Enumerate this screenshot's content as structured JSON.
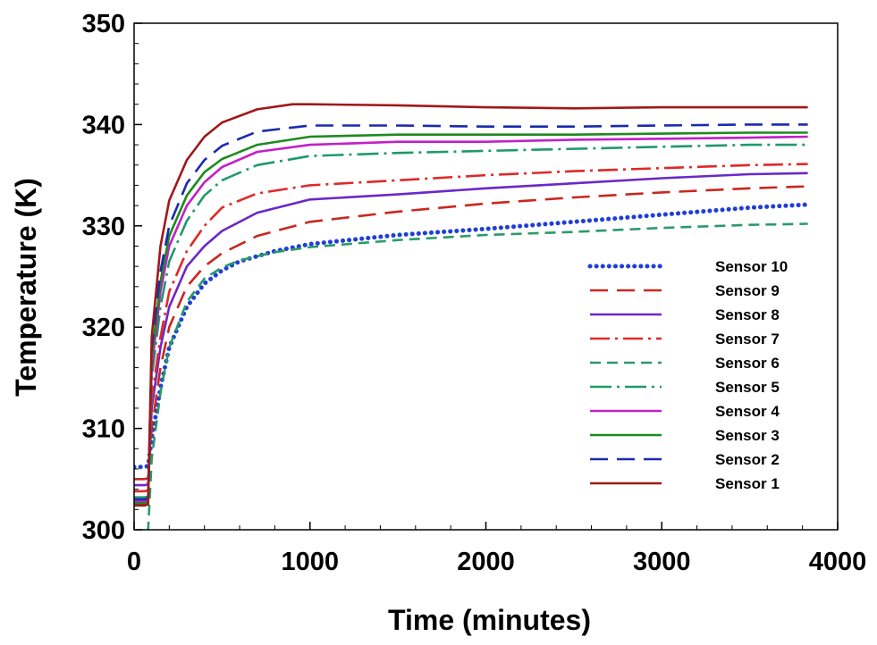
{
  "chart_data": {
    "type": "line",
    "xlabel": "Time (minutes)",
    "ylabel": "Temperature (K)",
    "xlim": [
      0,
      4000
    ],
    "ylim": [
      300,
      350
    ],
    "xticks": [
      0,
      1000,
      2000,
      3000,
      4000
    ],
    "yticks": [
      300,
      310,
      320,
      330,
      340,
      350
    ],
    "x_tick_labels": [
      "0",
      "1000",
      "2000",
      "3000",
      "4000"
    ],
    "y_tick_labels": [
      "300",
      "310",
      "320",
      "330",
      "340",
      "350"
    ],
    "grid": false,
    "legend_position": "right-center",
    "series": [
      {
        "name": "Sensor 10",
        "color": "#1f3fd6",
        "dash": "dotted",
        "x": [
          0,
          60,
          80,
          100,
          150,
          200,
          300,
          400,
          500,
          600,
          800,
          1000,
          1500,
          2000,
          2500,
          3000,
          3500,
          3830
        ],
        "y": [
          306.2,
          306.2,
          306.3,
          309.0,
          314.0,
          318.0,
          322.0,
          324.3,
          325.6,
          326.5,
          327.5,
          328.2,
          329.1,
          329.7,
          330.4,
          331.1,
          331.8,
          332.1
        ]
      },
      {
        "name": "Sensor 9",
        "color": "#c8281e",
        "dash": "long-dash",
        "x": [
          0,
          60,
          80,
          100,
          150,
          200,
          300,
          400,
          500,
          700,
          1000,
          1500,
          2000,
          2500,
          3000,
          3500,
          3830
        ],
        "y": [
          305.0,
          305.0,
          305.1,
          310.0,
          316.0,
          320.0,
          324.0,
          326.0,
          327.3,
          329.0,
          330.4,
          331.4,
          332.2,
          332.8,
          333.3,
          333.7,
          333.9
        ]
      },
      {
        "name": "Sensor 8",
        "color": "#6a28c8",
        "dash": "solid",
        "x": [
          0,
          60,
          80,
          100,
          150,
          200,
          300,
          400,
          500,
          700,
          1000,
          1500,
          2000,
          2500,
          3000,
          3500,
          3830
        ],
        "y": [
          304.4,
          304.4,
          304.5,
          312.0,
          318.0,
          322.0,
          326.0,
          328.0,
          329.5,
          331.3,
          332.6,
          333.1,
          333.7,
          334.2,
          334.7,
          335.1,
          335.2
        ]
      },
      {
        "name": "Sensor 7",
        "color": "#e02828",
        "dash": "dash-dot",
        "x": [
          0,
          60,
          80,
          100,
          150,
          200,
          300,
          400,
          500,
          700,
          1000,
          1500,
          2000,
          2500,
          3000,
          3500,
          3830
        ],
        "y": [
          303.8,
          303.8,
          303.9,
          313.0,
          319.0,
          323.5,
          327.5,
          330.0,
          331.8,
          333.2,
          334.0,
          334.5,
          335.0,
          335.4,
          335.7,
          336.0,
          336.1
        ]
      },
      {
        "name": "Sensor 6",
        "color": "#2a9a6a",
        "dash": "dashed",
        "x": [
          0,
          60,
          80,
          100,
          150,
          200,
          300,
          400,
          500,
          600,
          800,
          1000,
          1500,
          2000,
          2500,
          3000,
          3500,
          3830
        ],
        "y": [
          299.0,
          299.2,
          300.0,
          307.0,
          313.5,
          318.0,
          322.5,
          324.8,
          325.9,
          326.6,
          327.4,
          327.9,
          328.6,
          329.1,
          329.4,
          329.8,
          330.1,
          330.2
        ]
      },
      {
        "name": "Sensor 5",
        "color": "#1e9a6a",
        "dash": "long-dash-dot",
        "x": [
          0,
          60,
          80,
          100,
          150,
          200,
          300,
          400,
          500,
          700,
          1000,
          1500,
          2000,
          2500,
          3000,
          3500,
          3830
        ],
        "y": [
          303.2,
          303.2,
          303.3,
          315.0,
          322.0,
          326.5,
          330.5,
          333.0,
          334.5,
          336.0,
          336.9,
          337.2,
          337.4,
          337.6,
          337.8,
          338.0,
          338.0
        ]
      },
      {
        "name": "Sensor 4",
        "color": "#c020c8",
        "dash": "solid",
        "x": [
          0,
          60,
          80,
          100,
          150,
          200,
          300,
          400,
          500,
          700,
          1000,
          1500,
          2000,
          2500,
          3000,
          3500,
          3830
        ],
        "y": [
          302.8,
          302.8,
          302.9,
          316.0,
          323.5,
          328.0,
          332.0,
          334.3,
          335.8,
          337.3,
          338.0,
          338.3,
          338.3,
          338.5,
          338.6,
          338.7,
          338.8
        ]
      },
      {
        "name": "Sensor 3",
        "color": "#1e8a1e",
        "dash": "solid",
        "x": [
          0,
          60,
          80,
          100,
          150,
          200,
          300,
          400,
          500,
          700,
          1000,
          1500,
          2000,
          2500,
          3000,
          3500,
          3830
        ],
        "y": [
          302.6,
          302.6,
          302.7,
          317.0,
          324.5,
          329.0,
          333.0,
          335.3,
          336.6,
          338.0,
          338.8,
          339.0,
          339.0,
          339.0,
          339.1,
          339.2,
          339.2
        ]
      },
      {
        "name": "Sensor 2",
        "color": "#1a2ab0",
        "dash": "long-dash",
        "x": [
          0,
          60,
          80,
          100,
          150,
          200,
          300,
          400,
          500,
          700,
          1000,
          1500,
          2000,
          2500,
          3000,
          3500,
          3830
        ],
        "y": [
          303.0,
          303.0,
          303.1,
          318.0,
          325.5,
          330.0,
          334.2,
          336.5,
          337.9,
          339.3,
          339.9,
          339.9,
          339.8,
          339.8,
          339.9,
          340.0,
          340.0
        ]
      },
      {
        "name": "Sensor 1",
        "color": "#a01818",
        "dash": "solid",
        "x": [
          0,
          60,
          80,
          100,
          150,
          200,
          300,
          400,
          500,
          700,
          900,
          1000,
          1500,
          2000,
          2500,
          3000,
          3500,
          3830
        ],
        "y": [
          302.4,
          302.4,
          302.5,
          319.0,
          328.0,
          332.5,
          336.5,
          338.8,
          340.2,
          341.5,
          342.0,
          342.0,
          341.9,
          341.7,
          341.6,
          341.7,
          341.7,
          341.7
        ]
      }
    ]
  }
}
